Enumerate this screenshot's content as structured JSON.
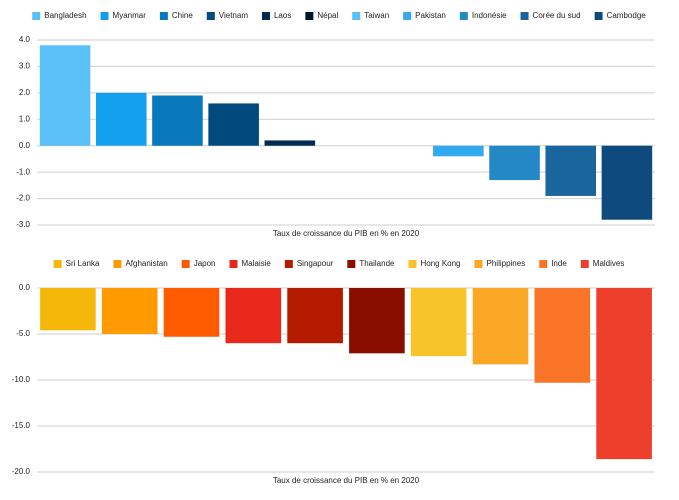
{
  "chart_data": [
    {
      "type": "bar",
      "categories": [
        "Bangladesh",
        "Myanmar",
        "Chine",
        "Vietnam",
        "Laos",
        "Népal",
        "Taiwan",
        "Pakistan",
        "Indonésie",
        "Corée du sud",
        "Cambodge"
      ],
      "values": [
        3.8,
        2.0,
        1.9,
        1.6,
        0.2,
        0,
        0,
        -0.4,
        -1.3,
        -1.9,
        -2.8
      ],
      "colors": [
        "#5bc0f8",
        "#12a0ee",
        "#0a78bd",
        "#004a7e",
        "#002b52",
        "#00182e",
        "#5bc0f8",
        "#33aaf0",
        "#2488c6",
        "#1a659c",
        "#0f4a7e"
      ],
      "xlabel": "Taux de croissance du PIB en % en 2020",
      "ylim": [
        -3,
        4
      ],
      "yticks": [
        {
          "value": 4,
          "label": "4.0"
        },
        {
          "value": 3,
          "label": "3.0"
        },
        {
          "value": 2,
          "label": "2.0"
        },
        {
          "value": 1,
          "label": "1.0"
        },
        {
          "value": 0,
          "label": "0.0"
        },
        {
          "value": -1,
          "label": "-1.0"
        },
        {
          "value": -2,
          "label": "-2.0"
        },
        {
          "value": -3,
          "label": "-3.0"
        }
      ],
      "grid": true,
      "legend": "top"
    },
    {
      "type": "bar",
      "categories": [
        "Sri Lanka",
        "Afghanistan",
        "Japon",
        "Malaisie",
        "Singapour",
        "Thailande",
        "Hong Kong",
        "Philippines",
        "Inde",
        "Maldives"
      ],
      "values": [
        -4.6,
        -5.0,
        -5.3,
        -6.0,
        -6.0,
        -7.1,
        -7.4,
        -8.3,
        -10.3,
        -18.6
      ],
      "colors": [
        "#f5b80a",
        "#ff9a00",
        "#ff5a00",
        "#e8281a",
        "#b41a00",
        "#8a0e00",
        "#f7c52a",
        "#fba726",
        "#fa7428",
        "#ee3f2d"
      ],
      "xlabel": "Taux de croissance du PIB en % en 2020",
      "ylim": [
        -20,
        0
      ],
      "yticks": [
        {
          "value": 0,
          "label": "0.0"
        },
        {
          "value": -5,
          "label": "-5.0"
        },
        {
          "value": -10,
          "label": "-10.0"
        },
        {
          "value": -15,
          "label": "-15.0"
        },
        {
          "value": -20,
          "label": "-20.0"
        }
      ],
      "grid": true,
      "legend": "top"
    }
  ]
}
